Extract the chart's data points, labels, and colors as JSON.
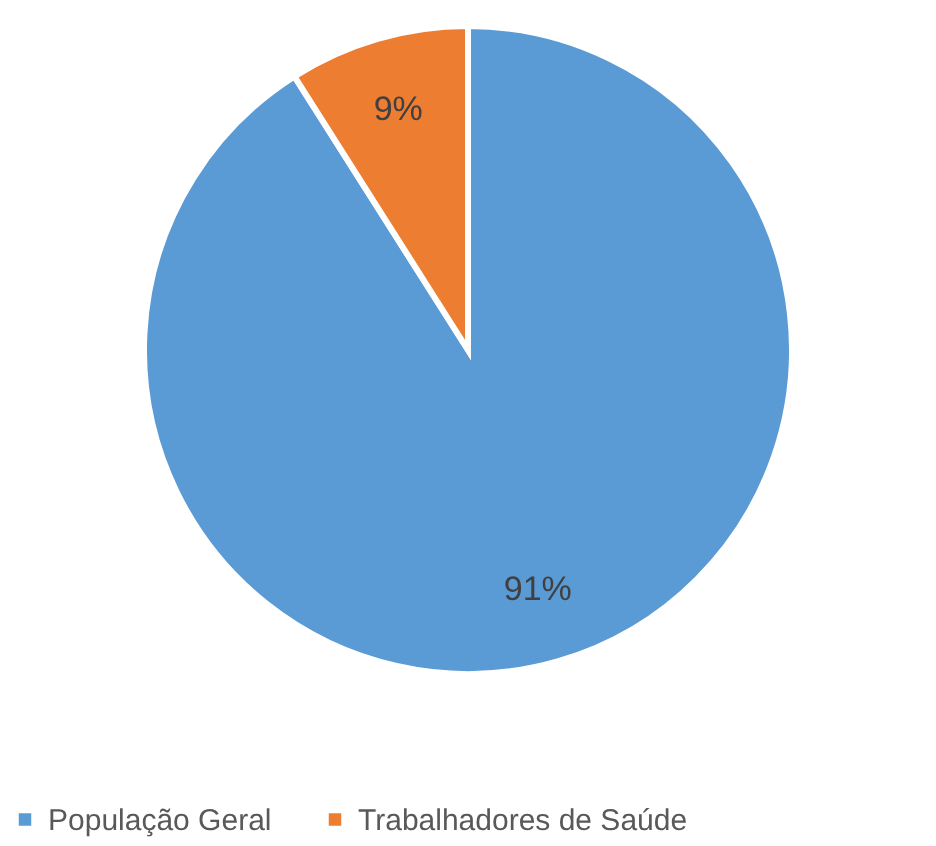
{
  "chart_data": {
    "type": "pie",
    "categories": [
      "População Geral",
      "Trabalhadores de Saúde"
    ],
    "values": [
      91,
      9
    ],
    "colors": [
      "#5b9bd5",
      "#ed7d31"
    ],
    "value_labels": [
      "91%",
      "9%"
    ],
    "legend": "bottom"
  }
}
